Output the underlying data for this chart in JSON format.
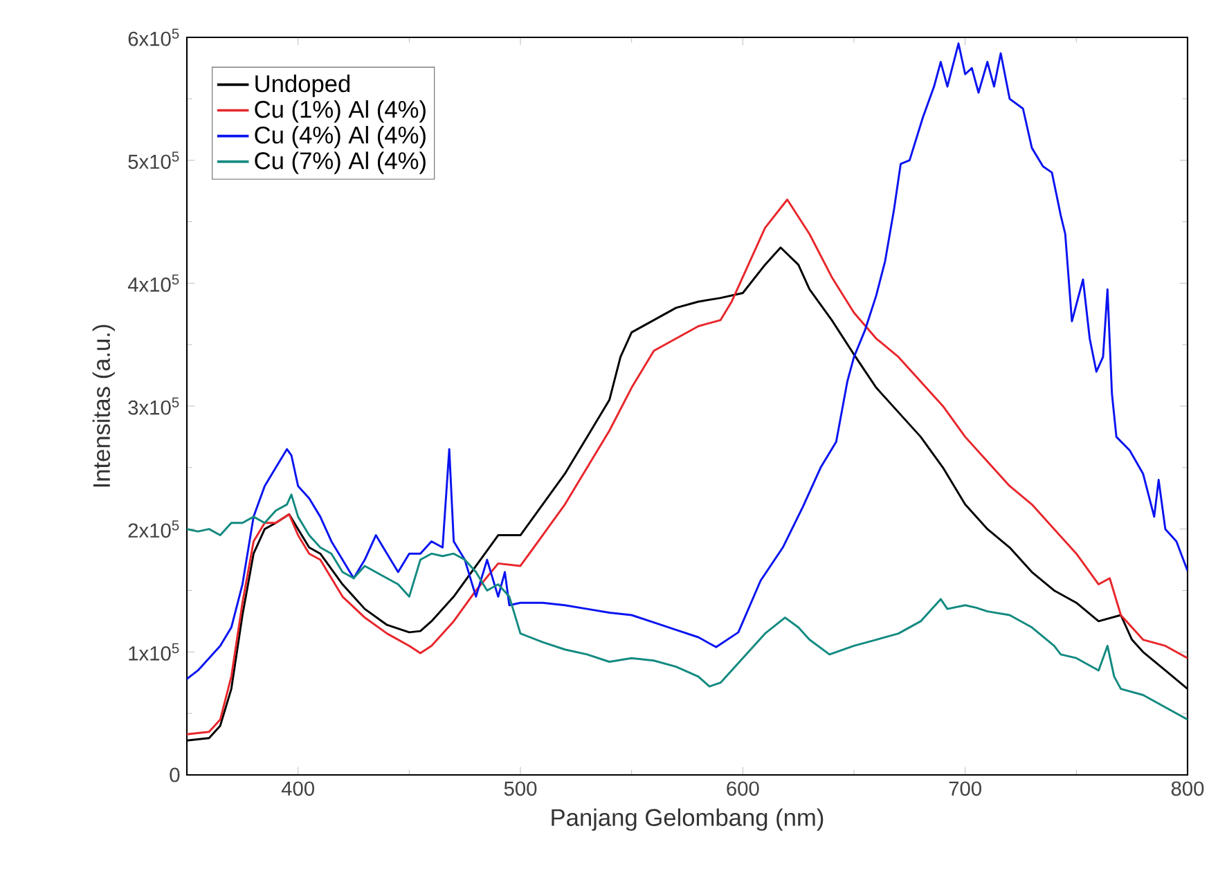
{
  "chart_data": {
    "type": "line",
    "xlabel": "Panjang Gelombang (nm)",
    "ylabel": "Intensitas (a.u.)",
    "xlim": [
      350,
      800
    ],
    "ylim": [
      0,
      600000
    ],
    "xticks": [
      400,
      500,
      600,
      700,
      800
    ],
    "yticks": [
      0,
      {
        "value": 100000,
        "label": "1x10$^{5}$"
      },
      {
        "value": 200000,
        "label": "2x10$^{5}$"
      },
      {
        "value": 300000,
        "label": "3x10$^{5}$"
      },
      {
        "value": 400000,
        "label": "4x10$^{5}$"
      },
      {
        "value": 500000,
        "label": "5x10$^{5}$"
      },
      {
        "value": 600000,
        "label": "6x10$^{5}$"
      }
    ],
    "legend": "top left",
    "series": [
      {
        "name": "Undoped",
        "color": "#000000",
        "x": [
          350,
          360,
          365,
          370,
          375,
          380,
          385,
          390,
          396,
          400,
          405,
          410,
          420,
          430,
          440,
          450,
          455,
          460,
          470,
          480,
          490,
          500,
          510,
          520,
          530,
          540,
          545,
          550,
          560,
          570,
          580,
          590,
          600,
          610,
          617,
          625,
          630,
          640,
          650,
          660,
          670,
          680,
          690,
          700,
          710,
          720,
          730,
          740,
          750,
          760,
          770,
          775,
          780,
          790,
          800
        ],
        "values": [
          28000,
          30000,
          40000,
          70000,
          130000,
          180000,
          200000,
          205000,
          212000,
          200000,
          185000,
          180000,
          155000,
          135000,
          122000,
          116000,
          117000,
          125000,
          145000,
          170000,
          195000,
          195000,
          220000,
          245000,
          275000,
          305000,
          340000,
          360000,
          370000,
          380000,
          385000,
          388000,
          392000,
          415000,
          429000,
          415000,
          395000,
          370000,
          342000,
          315000,
          295000,
          275000,
          250000,
          220000,
          200000,
          185000,
          165000,
          150000,
          140000,
          125000,
          130000,
          110000,
          100000,
          85000,
          70000
        ]
      },
      {
        "name": "Cu (1%) Al (4%)",
        "color": "#e8262b",
        "x": [
          350,
          360,
          365,
          370,
          375,
          380,
          385,
          390,
          396,
          400,
          405,
          410,
          420,
          430,
          440,
          450,
          455,
          460,
          470,
          480,
          490,
          500,
          510,
          520,
          530,
          540,
          550,
          560,
          570,
          580,
          590,
          595,
          600,
          610,
          620,
          630,
          640,
          650,
          660,
          670,
          680,
          690,
          700,
          710,
          720,
          730,
          740,
          750,
          760,
          765,
          770,
          780,
          790,
          800
        ],
        "values": [
          33000,
          35000,
          45000,
          80000,
          140000,
          190000,
          205000,
          205000,
          212000,
          195000,
          180000,
          175000,
          145000,
          128000,
          115000,
          105000,
          99000,
          105000,
          125000,
          150000,
          172000,
          170000,
          195000,
          220000,
          250000,
          280000,
          315000,
          345000,
          355000,
          365000,
          370000,
          385000,
          405000,
          445000,
          468000,
          440000,
          405000,
          376000,
          355000,
          340000,
          320000,
          300000,
          275000,
          255000,
          235000,
          220000,
          200000,
          180000,
          155000,
          160000,
          130000,
          110000,
          105000,
          95000
        ]
      },
      {
        "name": "Cu (4%) Al (4%)",
        "color": "#0a14f0",
        "x": [
          350,
          355,
          360,
          365,
          370,
          375,
          380,
          385,
          390,
          395,
          397,
          400,
          405,
          410,
          415,
          420,
          425,
          430,
          435,
          440,
          445,
          450,
          455,
          460,
          465,
          468,
          470,
          475,
          480,
          485,
          490,
          493,
          495,
          500,
          510,
          520,
          530,
          540,
          550,
          560,
          570,
          580,
          588,
          598,
          608,
          618,
          627,
          635,
          642,
          647,
          650,
          655,
          660,
          664,
          668,
          671,
          675,
          681,
          686,
          689,
          692,
          697,
          700,
          703,
          706,
          710,
          713,
          716,
          720,
          726,
          730,
          735,
          739,
          743,
          745,
          748,
          753,
          756,
          759,
          762,
          764,
          766,
          768,
          774,
          780,
          785,
          787,
          790,
          795,
          800
        ],
        "values": [
          78000,
          85000,
          95000,
          105000,
          120000,
          155000,
          210000,
          235000,
          250000,
          265000,
          260000,
          235000,
          225000,
          210000,
          190000,
          175000,
          160000,
          175000,
          195000,
          180000,
          165000,
          180000,
          180000,
          190000,
          185000,
          265000,
          190000,
          175000,
          145000,
          175000,
          145000,
          165000,
          138000,
          140000,
          140000,
          138000,
          135000,
          132000,
          130000,
          124000,
          118000,
          112000,
          104000,
          116000,
          158000,
          185000,
          218000,
          250000,
          271000,
          320000,
          340000,
          362000,
          390000,
          418000,
          460000,
          497000,
          500000,
          535000,
          560000,
          580000,
          560000,
          595000,
          570000,
          575000,
          555000,
          580000,
          560000,
          587000,
          550000,
          542000,
          510000,
          495000,
          490000,
          455000,
          440000,
          369000,
          403000,
          355000,
          328000,
          340000,
          395000,
          310000,
          275000,
          264000,
          245000,
          210000,
          240000,
          200000,
          190000,
          166000
        ]
      },
      {
        "name": "Cu (7%) Al (4%)",
        "color": "#138a80",
        "x": [
          350,
          355,
          360,
          365,
          370,
          375,
          380,
          385,
          390,
          395,
          397,
          400,
          405,
          410,
          415,
          420,
          425,
          430,
          435,
          440,
          445,
          450,
          455,
          460,
          465,
          470,
          475,
          480,
          485,
          490,
          495,
          500,
          510,
          520,
          530,
          540,
          550,
          560,
          570,
          580,
          585,
          590,
          600,
          610,
          619,
          625,
          630,
          639,
          650,
          660,
          670,
          680,
          689,
          692,
          700,
          705,
          710,
          720,
          730,
          740,
          743,
          750,
          760,
          764,
          767,
          770,
          780,
          790,
          800
        ],
        "values": [
          200000,
          198000,
          200000,
          195000,
          205000,
          205000,
          210000,
          205000,
          215000,
          220000,
          228000,
          210000,
          195000,
          185000,
          180000,
          165000,
          160000,
          170000,
          165000,
          160000,
          155000,
          145000,
          175000,
          180000,
          178000,
          180000,
          175000,
          165000,
          150000,
          155000,
          145000,
          115000,
          108000,
          102000,
          98000,
          92000,
          95000,
          93000,
          88000,
          80000,
          72000,
          75000,
          95000,
          115000,
          128000,
          120000,
          110000,
          98000,
          105000,
          110000,
          115000,
          125000,
          143000,
          135000,
          138000,
          136000,
          133000,
          130000,
          120000,
          105000,
          98000,
          95000,
          85000,
          105000,
          80000,
          70000,
          65000,
          55000,
          45000
        ]
      }
    ]
  }
}
